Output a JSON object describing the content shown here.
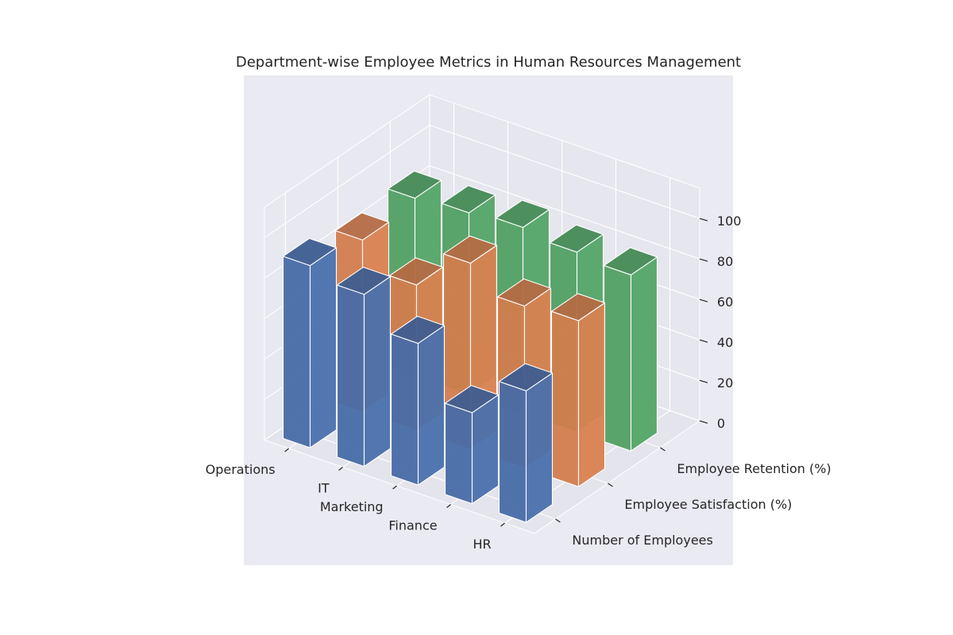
{
  "chart_data": {
    "type": "bar",
    "projection": "3d",
    "title": "Department-wise Employee Metrics in Human Resources Management",
    "xlabel": "",
    "ylabel": "",
    "zlabel": "",
    "categories": [
      "Operations",
      "IT",
      "Marketing",
      "Finance",
      "HR"
    ],
    "series": [
      {
        "name": "Number of Employees",
        "values": [
          90,
          85,
          70,
          45,
          65
        ]
      },
      {
        "name": "Employee Satisfaction (%)",
        "values": [
          85,
          72,
          92,
          80,
          82
        ]
      },
      {
        "name": "Employee Retention (%)",
        "values": [
          88,
          90,
          92,
          89,
          87
        ]
      }
    ],
    "zlim": [
      0,
      100
    ],
    "zticks": [
      0,
      20,
      40,
      60,
      80,
      100
    ],
    "grid": true,
    "colors": [
      "#4c72b0",
      "#dd8452",
      "#55a868"
    ],
    "pane_color": "#eaeaf2",
    "figure_background": "#ffffff"
  }
}
